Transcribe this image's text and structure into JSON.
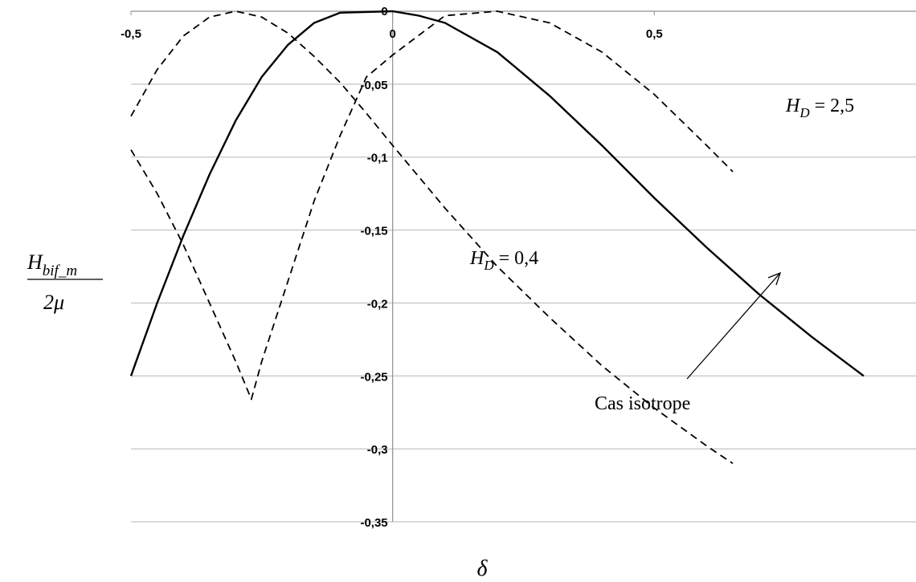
{
  "chart_data": {
    "type": "line",
    "xlabel": "δ",
    "ylabel_num": "H",
    "ylabel_num_sub": "bif_m",
    "ylabel_den": "2μ",
    "xlim": [
      -0.5,
      1.0
    ],
    "ylim": [
      -0.35,
      0.0
    ],
    "x_ticks": [
      {
        "value": -0.5,
        "label": "-0,5"
      },
      {
        "value": 0.0,
        "label": "0"
      },
      {
        "value": 0.5,
        "label": "0,5"
      }
    ],
    "y_ticks": [
      {
        "value": 0.0,
        "label": "0"
      },
      {
        "value": -0.05,
        "label": "-0,05"
      },
      {
        "value": -0.1,
        "label": "-0,1"
      },
      {
        "value": -0.15,
        "label": "-0,15"
      },
      {
        "value": -0.2,
        "label": "-0,2"
      },
      {
        "value": -0.25,
        "label": "-0,25"
      },
      {
        "value": -0.3,
        "label": "-0,3"
      },
      {
        "value": -0.35,
        "label": "-0,35"
      }
    ],
    "grid": "horizontal",
    "series": [
      {
        "style": "solid",
        "points": [
          [
            -0.5,
            -0.25
          ],
          [
            -0.45,
            -0.2
          ],
          [
            -0.4,
            -0.154
          ],
          [
            -0.35,
            -0.112
          ],
          [
            -0.3,
            -0.075
          ],
          [
            -0.25,
            -0.045
          ],
          [
            -0.2,
            -0.023
          ],
          [
            -0.15,
            -0.008
          ],
          [
            -0.1,
            -0.001
          ],
          [
            0.0,
            0.0
          ],
          [
            0.05,
            -0.003
          ],
          [
            0.1,
            -0.008
          ],
          [
            0.2,
            -0.028
          ],
          [
            0.3,
            -0.058
          ],
          [
            0.4,
            -0.092
          ],
          [
            0.5,
            -0.128
          ],
          [
            0.6,
            -0.162
          ],
          [
            0.7,
            -0.194
          ],
          [
            0.8,
            -0.223
          ],
          [
            0.9,
            -0.25
          ]
        ]
      },
      {
        "style": "dashed",
        "points": [
          [
            -0.5,
            -0.072
          ],
          [
            -0.45,
            -0.04
          ],
          [
            -0.4,
            -0.017
          ],
          [
            -0.35,
            -0.004
          ],
          [
            -0.3,
            0.0
          ],
          [
            -0.25,
            -0.004
          ],
          [
            -0.2,
            -0.015
          ],
          [
            -0.15,
            -0.031
          ],
          [
            -0.1,
            -0.049
          ],
          [
            -0.05,
            -0.07
          ],
          [
            0.0,
            -0.092
          ],
          [
            0.1,
            -0.135
          ],
          [
            0.2,
            -0.175
          ],
          [
            0.3,
            -0.21
          ],
          [
            0.4,
            -0.243
          ],
          [
            0.5,
            -0.272
          ],
          [
            0.6,
            -0.298
          ],
          [
            0.65,
            -0.31
          ]
        ]
      },
      {
        "style": "dashed",
        "points": [
          [
            -0.5,
            -0.095
          ],
          [
            -0.45,
            -0.125
          ],
          [
            -0.4,
            -0.16
          ],
          [
            -0.35,
            -0.2
          ],
          [
            -0.3,
            -0.24
          ],
          [
            -0.27,
            -0.266
          ],
          [
            -0.25,
            -0.24
          ],
          [
            -0.2,
            -0.185
          ],
          [
            -0.15,
            -0.13
          ],
          [
            -0.1,
            -0.085
          ],
          [
            -0.05,
            -0.045
          ],
          [
            0.0,
            -0.03
          ],
          [
            0.1,
            -0.003
          ],
          [
            0.2,
            0.0
          ],
          [
            0.3,
            -0.008
          ],
          [
            0.4,
            -0.028
          ],
          [
            0.5,
            -0.057
          ],
          [
            0.6,
            -0.092
          ],
          [
            0.65,
            -0.11
          ]
        ]
      }
    ],
    "annotations": {
      "hd_high": {
        "prefix": "H",
        "sub": "D",
        "value": " = 2,5"
      },
      "hd_low": {
        "prefix": "H",
        "sub": "D",
        "value": " = 0,4"
      },
      "isotrope": {
        "text": "Cas isotrope",
        "arrow_to": [
          0.32,
          -0.18
        ]
      }
    }
  }
}
